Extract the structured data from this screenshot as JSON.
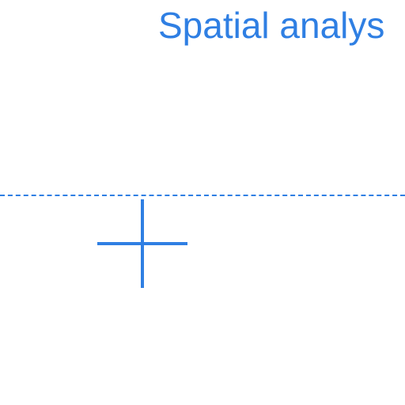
{
  "header": {
    "title": "Spatial analys"
  },
  "colors": {
    "accent": "#2f7fe3"
  },
  "icons": {
    "crosshair": "crosshair-icon"
  }
}
